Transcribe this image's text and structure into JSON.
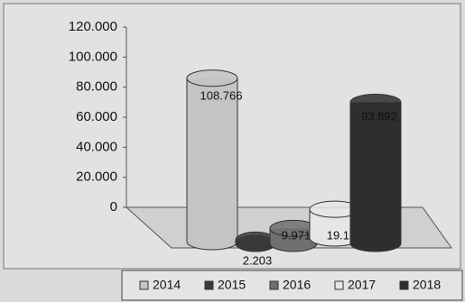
{
  "chart_data": {
    "type": "bar3d",
    "series": [
      {
        "name": "2014",
        "color": "#c4c4c4",
        "values": [
          108766
        ],
        "value_labels": [
          "108.766"
        ]
      },
      {
        "name": "2015",
        "color": "#3a3a3a",
        "values": [
          2203
        ],
        "value_labels": [
          "2.203"
        ]
      },
      {
        "name": "2016",
        "color": "#707070",
        "values": [
          9971
        ],
        "value_labels": [
          "9.971"
        ]
      },
      {
        "name": "2017",
        "color": "#e6e6e6",
        "values": [
          19100
        ],
        "value_labels": [
          "19.10"
        ]
      },
      {
        "name": "2018",
        "color": "#2e2e2e",
        "values": [
          93892
        ],
        "value_labels": [
          "93.892"
        ]
      }
    ],
    "ylim": [
      0,
      120000
    ],
    "yticks": [
      {
        "value": 0,
        "label": "0"
      },
      {
        "value": 20000,
        "label": "20.000"
      },
      {
        "value": 40000,
        "label": "40.000"
      },
      {
        "value": 60000,
        "label": "60.000"
      },
      {
        "value": 80000,
        "label": "80.000"
      },
      {
        "value": 100000,
        "label": "100.000"
      },
      {
        "value": 120000,
        "label": "120.000"
      }
    ],
    "legend": "bottom"
  }
}
